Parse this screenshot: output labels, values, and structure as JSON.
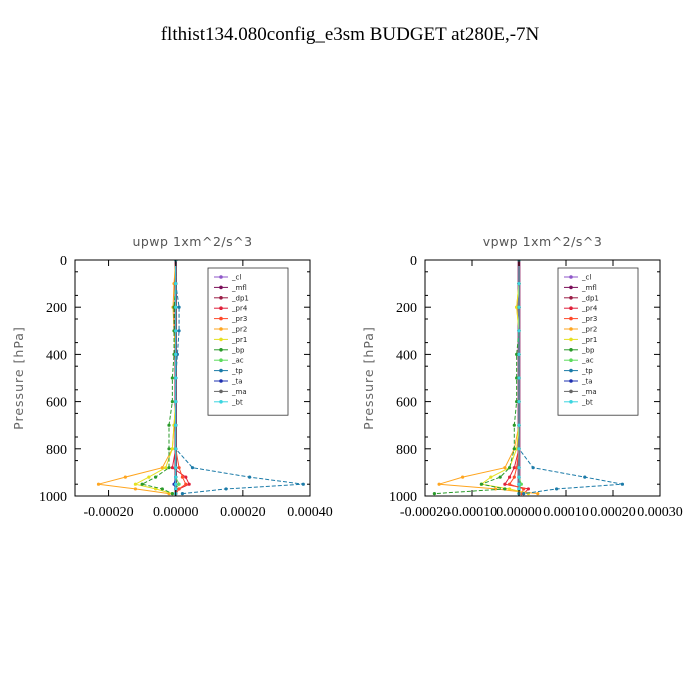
{
  "page_title": "flthist134.080config_e3sm  BUDGET at280E,-7N",
  "chart_data": [
    {
      "type": "line",
      "title": "upwp   1xm^2/s^3",
      "ylabel": "Pressure [hPa]",
      "xlim": [
        -0.0003,
        0.0004
      ],
      "ylim": [
        1000,
        0
      ],
      "xticks": [
        -0.0002,
        0.0,
        0.0002,
        0.0004
      ],
      "xtick_labels": [
        "-0.00020",
        "0.00000",
        "0.00020",
        "0.00040"
      ],
      "yticks": [
        0,
        200,
        400,
        600,
        800,
        1000
      ],
      "ytick_labels": [
        "0",
        "200",
        "400",
        "600",
        "800",
        "1000"
      ],
      "legend_position": "top-right",
      "series": [
        {
          "name": "_cl",
          "color": "#8e55c8",
          "pressure": [
            0,
            100,
            200,
            300,
            400,
            500,
            600,
            700,
            800,
            880,
            920,
            950,
            970,
            990
          ],
          "values": [
            0,
            0,
            0,
            0,
            0,
            0,
            0,
            0,
            0,
            0,
            0,
            0,
            0,
            0
          ]
        },
        {
          "name": "_mfl",
          "color": "#7a0f5a",
          "pressure": [
            0,
            100,
            200,
            300,
            400,
            500,
            600,
            700,
            800,
            880,
            920,
            950,
            970,
            990
          ],
          "values": [
            0,
            0,
            0,
            0,
            0,
            0,
            0,
            0,
            0,
            0,
            0,
            0,
            0,
            0
          ]
        },
        {
          "name": "_dp1",
          "color": "#9b1e47",
          "pressure": [
            0,
            100,
            200,
            300,
            400,
            500,
            600,
            700,
            800,
            880,
            920,
            950,
            970,
            990
          ],
          "values": [
            0,
            0,
            0,
            0,
            0,
            0,
            0,
            0,
            0,
            0,
            0,
            0,
            0,
            0
          ]
        },
        {
          "name": "_pr4",
          "color": "#e0203a",
          "pressure": [
            0,
            100,
            200,
            300,
            400,
            500,
            600,
            700,
            800,
            880,
            920,
            950,
            970,
            990
          ],
          "values": [
            0,
            0,
            0,
            0,
            0,
            0,
            0,
            0,
            0,
            -1e-05,
            3e-05,
            4e-05,
            1e-05,
            0
          ]
        },
        {
          "name": "_pr3",
          "color": "#ff4a2a",
          "pressure": [
            0,
            100,
            200,
            300,
            400,
            500,
            600,
            700,
            800,
            880,
            920,
            950,
            970,
            990
          ],
          "values": [
            0,
            0,
            0,
            0,
            0,
            0,
            0,
            0,
            0,
            1e-05,
            2e-05,
            3e-05,
            1e-05,
            0
          ]
        },
        {
          "name": "_pr2",
          "color": "#ffa51f",
          "pressure": [
            0,
            100,
            200,
            300,
            400,
            500,
            600,
            700,
            800,
            880,
            920,
            950,
            970,
            990
          ],
          "values": [
            0,
            -5e-06,
            -8e-06,
            -5e-06,
            0,
            0,
            0,
            -5e-06,
            -1e-05,
            -4e-05,
            -0.00015,
            -0.00023,
            -0.00012,
            -2e-05
          ]
        },
        {
          "name": "_pr1",
          "color": "#e6e020",
          "pressure": [
            0,
            100,
            200,
            300,
            400,
            500,
            600,
            700,
            800,
            880,
            920,
            950,
            970,
            990
          ],
          "values": [
            0,
            0,
            0,
            0,
            0,
            0,
            0,
            -5e-06,
            -1e-05,
            -3e-05,
            -8e-05,
            -0.00012,
            -6e-05,
            -1e-05
          ]
        },
        {
          "name": "_bp",
          "color": "#2a9a2a",
          "pressure": [
            0,
            100,
            200,
            300,
            400,
            500,
            600,
            700,
            800,
            880,
            920,
            950,
            970,
            990
          ],
          "values": [
            0,
            0,
            -5e-06,
            -5e-06,
            -5e-06,
            -1e-05,
            -1e-05,
            -2e-05,
            -2e-05,
            -2e-05,
            -6e-05,
            -0.0001,
            -4e-05,
            -1e-05
          ]
        },
        {
          "name": "_ac",
          "color": "#5ddc5d",
          "pressure": [
            0,
            100,
            200,
            300,
            400,
            500,
            600,
            700,
            800,
            880,
            920,
            950,
            970,
            990
          ],
          "values": [
            0,
            0,
            0,
            0,
            0,
            0,
            0,
            0,
            0,
            0,
            0,
            1e-05,
            0,
            0
          ]
        },
        {
          "name": "_tp",
          "color": "#1a7aa8",
          "pressure": [
            0,
            100,
            200,
            300,
            400,
            500,
            600,
            700,
            800,
            880,
            920,
            950,
            970,
            990
          ],
          "values": [
            0,
            0,
            1e-05,
            1e-05,
            5e-06,
            0,
            0,
            0,
            0,
            5e-05,
            0.00022,
            0.00038,
            0.00015,
            2e-05
          ]
        },
        {
          "name": "_ta",
          "color": "#1e30b0",
          "pressure": [
            0,
            100,
            200,
            300,
            400,
            500,
            600,
            700,
            800,
            880,
            920,
            950,
            970,
            990
          ],
          "values": [
            0,
            0,
            0,
            0,
            0,
            0,
            0,
            0,
            0,
            0,
            0,
            -5e-06,
            0,
            0
          ]
        },
        {
          "name": "_ma",
          "color": "#666666",
          "pressure": [
            0,
            100,
            200,
            300,
            400,
            500,
            600,
            700,
            800,
            880,
            920,
            950,
            970,
            990
          ],
          "values": [
            0,
            0,
            0,
            0,
            0,
            0,
            0,
            0,
            0,
            0,
            0,
            0,
            0,
            0
          ]
        },
        {
          "name": "_bt",
          "color": "#3ad5e0",
          "pressure": [
            0,
            100,
            200,
            300,
            400,
            500,
            600,
            700,
            800,
            880,
            920,
            950,
            970,
            990
          ],
          "values": [
            0,
            0,
            0,
            0,
            0,
            0,
            0,
            0,
            0,
            0,
            0,
            0,
            0,
            0
          ]
        }
      ]
    },
    {
      "type": "line",
      "title": "vpwp   1xm^2/s^3",
      "ylabel": "Pressure [hPa]",
      "xlim": [
        -0.0002,
        0.0003
      ],
      "ylim": [
        1000,
        0
      ],
      "xticks": [
        -0.0002,
        -0.0001,
        0.0,
        0.0001,
        0.0002,
        0.0003
      ],
      "xtick_labels": [
        "-0.00020",
        "-0.00010",
        "0.00000",
        "0.00010",
        "0.00020",
        "0.00030"
      ],
      "yticks": [
        0,
        200,
        400,
        600,
        800,
        1000
      ],
      "ytick_labels": [
        "0",
        "200",
        "400",
        "600",
        "800",
        "1000"
      ],
      "legend_position": "top-right",
      "series": [
        {
          "name": "_cl",
          "color": "#8e55c8",
          "pressure": [
            0,
            100,
            200,
            300,
            400,
            500,
            600,
            700,
            800,
            880,
            920,
            950,
            970,
            990
          ],
          "values": [
            0,
            0,
            0,
            0,
            0,
            0,
            0,
            0,
            0,
            0,
            0,
            0,
            0,
            0
          ]
        },
        {
          "name": "_mfl",
          "color": "#7a0f5a",
          "pressure": [
            0,
            100,
            200,
            300,
            400,
            500,
            600,
            700,
            800,
            880,
            920,
            950,
            970,
            990
          ],
          "values": [
            0,
            0,
            0,
            0,
            0,
            0,
            0,
            0,
            0,
            0,
            0,
            0,
            0,
            0
          ]
        },
        {
          "name": "_dp1",
          "color": "#9b1e47",
          "pressure": [
            0,
            100,
            200,
            300,
            400,
            500,
            600,
            700,
            800,
            880,
            920,
            950,
            970,
            990
          ],
          "values": [
            0,
            0,
            0,
            0,
            0,
            0,
            0,
            0,
            0,
            0,
            0,
            0,
            0,
            0
          ]
        },
        {
          "name": "_pr4",
          "color": "#e0203a",
          "pressure": [
            0,
            100,
            200,
            300,
            400,
            500,
            600,
            700,
            800,
            880,
            920,
            950,
            970,
            990
          ],
          "values": [
            0,
            0,
            0,
            0,
            0,
            0,
            0,
            0,
            0,
            -1e-05,
            -2e-05,
            -3e-05,
            2e-05,
            1e-05
          ]
        },
        {
          "name": "_pr3",
          "color": "#ff4a2a",
          "pressure": [
            0,
            100,
            200,
            300,
            400,
            500,
            600,
            700,
            800,
            880,
            920,
            950,
            970,
            990
          ],
          "values": [
            0,
            0,
            0,
            0,
            0,
            0,
            0,
            0,
            0,
            -5e-06,
            -1e-05,
            -2e-05,
            1e-05,
            5e-06
          ]
        },
        {
          "name": "_pr2",
          "color": "#ffa51f",
          "pressure": [
            0,
            100,
            200,
            300,
            400,
            500,
            600,
            700,
            800,
            880,
            920,
            950,
            970,
            990
          ],
          "values": [
            0,
            0,
            -5e-06,
            0,
            0,
            0,
            0,
            0,
            -1e-05,
            -3e-05,
            -0.00012,
            -0.00017,
            -5e-05,
            4e-05
          ]
        },
        {
          "name": "_pr1",
          "color": "#e6e020",
          "pressure": [
            0,
            100,
            200,
            300,
            400,
            500,
            600,
            700,
            800,
            880,
            920,
            950,
            970,
            990
          ],
          "values": [
            0,
            0,
            -5e-06,
            0,
            0,
            0,
            0,
            0,
            -5e-06,
            -2e-05,
            -6e-05,
            -8e-05,
            -2e-05,
            2e-05
          ]
        },
        {
          "name": "_bp",
          "color": "#2a9a2a",
          "pressure": [
            0,
            100,
            200,
            300,
            400,
            500,
            600,
            700,
            800,
            880,
            920,
            950,
            970,
            990
          ],
          "values": [
            0,
            0,
            0,
            0,
            -5e-06,
            -5e-06,
            -5e-06,
            -1e-05,
            -1e-05,
            -2e-05,
            -4e-05,
            -8e-05,
            -3e-05,
            -0.00018
          ]
        },
        {
          "name": "_ac",
          "color": "#5ddc5d",
          "pressure": [
            0,
            100,
            200,
            300,
            400,
            500,
            600,
            700,
            800,
            880,
            920,
            950,
            970,
            990
          ],
          "values": [
            0,
            0,
            0,
            0,
            0,
            0,
            0,
            0,
            0,
            0,
            0,
            5e-06,
            0,
            0
          ]
        },
        {
          "name": "_tp",
          "color": "#1a7aa8",
          "pressure": [
            0,
            100,
            200,
            300,
            400,
            500,
            600,
            700,
            800,
            880,
            920,
            950,
            970,
            990
          ],
          "values": [
            0,
            0,
            0,
            0,
            0,
            0,
            0,
            0,
            0,
            3e-05,
            0.00014,
            0.00022,
            8e-05,
            1e-05
          ]
        },
        {
          "name": "_ta",
          "color": "#1e30b0",
          "pressure": [
            0,
            100,
            200,
            300,
            400,
            500,
            600,
            700,
            800,
            880,
            920,
            950,
            970,
            990
          ],
          "values": [
            0,
            0,
            0,
            0,
            0,
            0,
            0,
            0,
            0,
            0,
            0,
            0,
            0,
            0
          ]
        },
        {
          "name": "_ma",
          "color": "#666666",
          "pressure": [
            0,
            100,
            200,
            300,
            400,
            500,
            600,
            700,
            800,
            880,
            920,
            950,
            970,
            990
          ],
          "values": [
            0,
            0,
            0,
            0,
            0,
            0,
            0,
            0,
            0,
            0,
            0,
            0,
            0,
            0
          ]
        },
        {
          "name": "_bt",
          "color": "#3ad5e0",
          "pressure": [
            0,
            100,
            200,
            300,
            400,
            500,
            600,
            700,
            800,
            880,
            920,
            950,
            970,
            990
          ],
          "values": [
            0,
            0,
            0,
            0,
            0,
            0,
            0,
            0,
            0,
            0,
            0,
            0,
            0,
            0
          ]
        }
      ]
    }
  ]
}
